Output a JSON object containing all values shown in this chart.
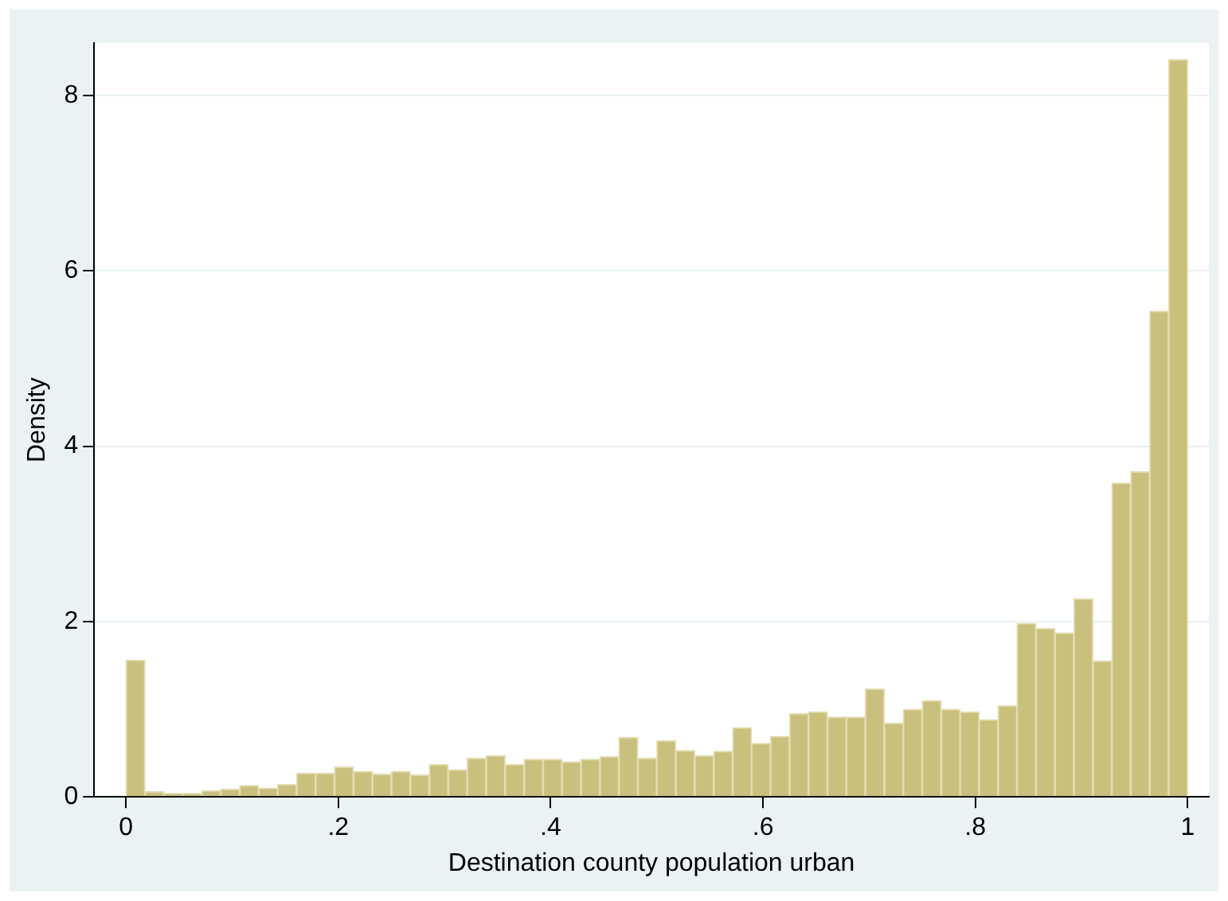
{
  "chart_data": {
    "type": "histogram",
    "xlabel": "Destination county population urban",
    "ylabel": "Density",
    "bins": [
      0,
      0.0179,
      0.0357,
      0.0536,
      0.0714,
      0.0893,
      0.1071,
      0.125,
      0.1429,
      0.1607,
      0.1786,
      0.1964,
      0.2143,
      0.2321,
      0.25,
      0.2679,
      0.2857,
      0.3036,
      0.3214,
      0.3393,
      0.3571,
      0.375,
      0.3929,
      0.4107,
      0.4286,
      0.4464,
      0.4643,
      0.4821,
      0.5,
      0.5179,
      0.5357,
      0.5536,
      0.5714,
      0.5893,
      0.6071,
      0.625,
      0.6429,
      0.6607,
      0.6786,
      0.6964,
      0.7143,
      0.7321,
      0.75,
      0.7679,
      0.7857,
      0.8036,
      0.8214,
      0.8393,
      0.8571,
      0.875,
      0.8929,
      0.9107,
      0.9286,
      0.9464,
      0.9643,
      0.9821,
      1
    ],
    "values": [
      1.56,
      0.06,
      0.04,
      0.04,
      0.07,
      0.09,
      0.13,
      0.1,
      0.14,
      0.27,
      0.27,
      0.34,
      0.29,
      0.26,
      0.29,
      0.25,
      0.37,
      0.31,
      0.44,
      0.47,
      0.37,
      0.43,
      0.43,
      0.4,
      0.43,
      0.46,
      0.68,
      0.44,
      0.64,
      0.53,
      0.47,
      0.52,
      0.79,
      0.61,
      0.69,
      0.95,
      0.97,
      0.91,
      0.91,
      1.23,
      0.84,
      1.0,
      1.1,
      1.0,
      0.97,
      0.88,
      1.04,
      1.98,
      1.92,
      1.87,
      2.26,
      1.55,
      3.58,
      3.71,
      5.54,
      8.41
    ],
    "color": "#c9c07e",
    "xlim": [
      -0.03,
      1.02
    ],
    "xticks": [
      0,
      {
        "value": 0.2,
        "label": ".2"
      },
      {
        "value": 0.4,
        "label": ".4"
      },
      {
        "value": 0.6,
        "label": ".6"
      },
      {
        "value": 0.8,
        "label": ".8"
      },
      1
    ],
    "ylim": [
      0,
      8.6
    ],
    "yticks": [
      0,
      2,
      4,
      6,
      8
    ],
    "grid": "y",
    "legend": false
  }
}
